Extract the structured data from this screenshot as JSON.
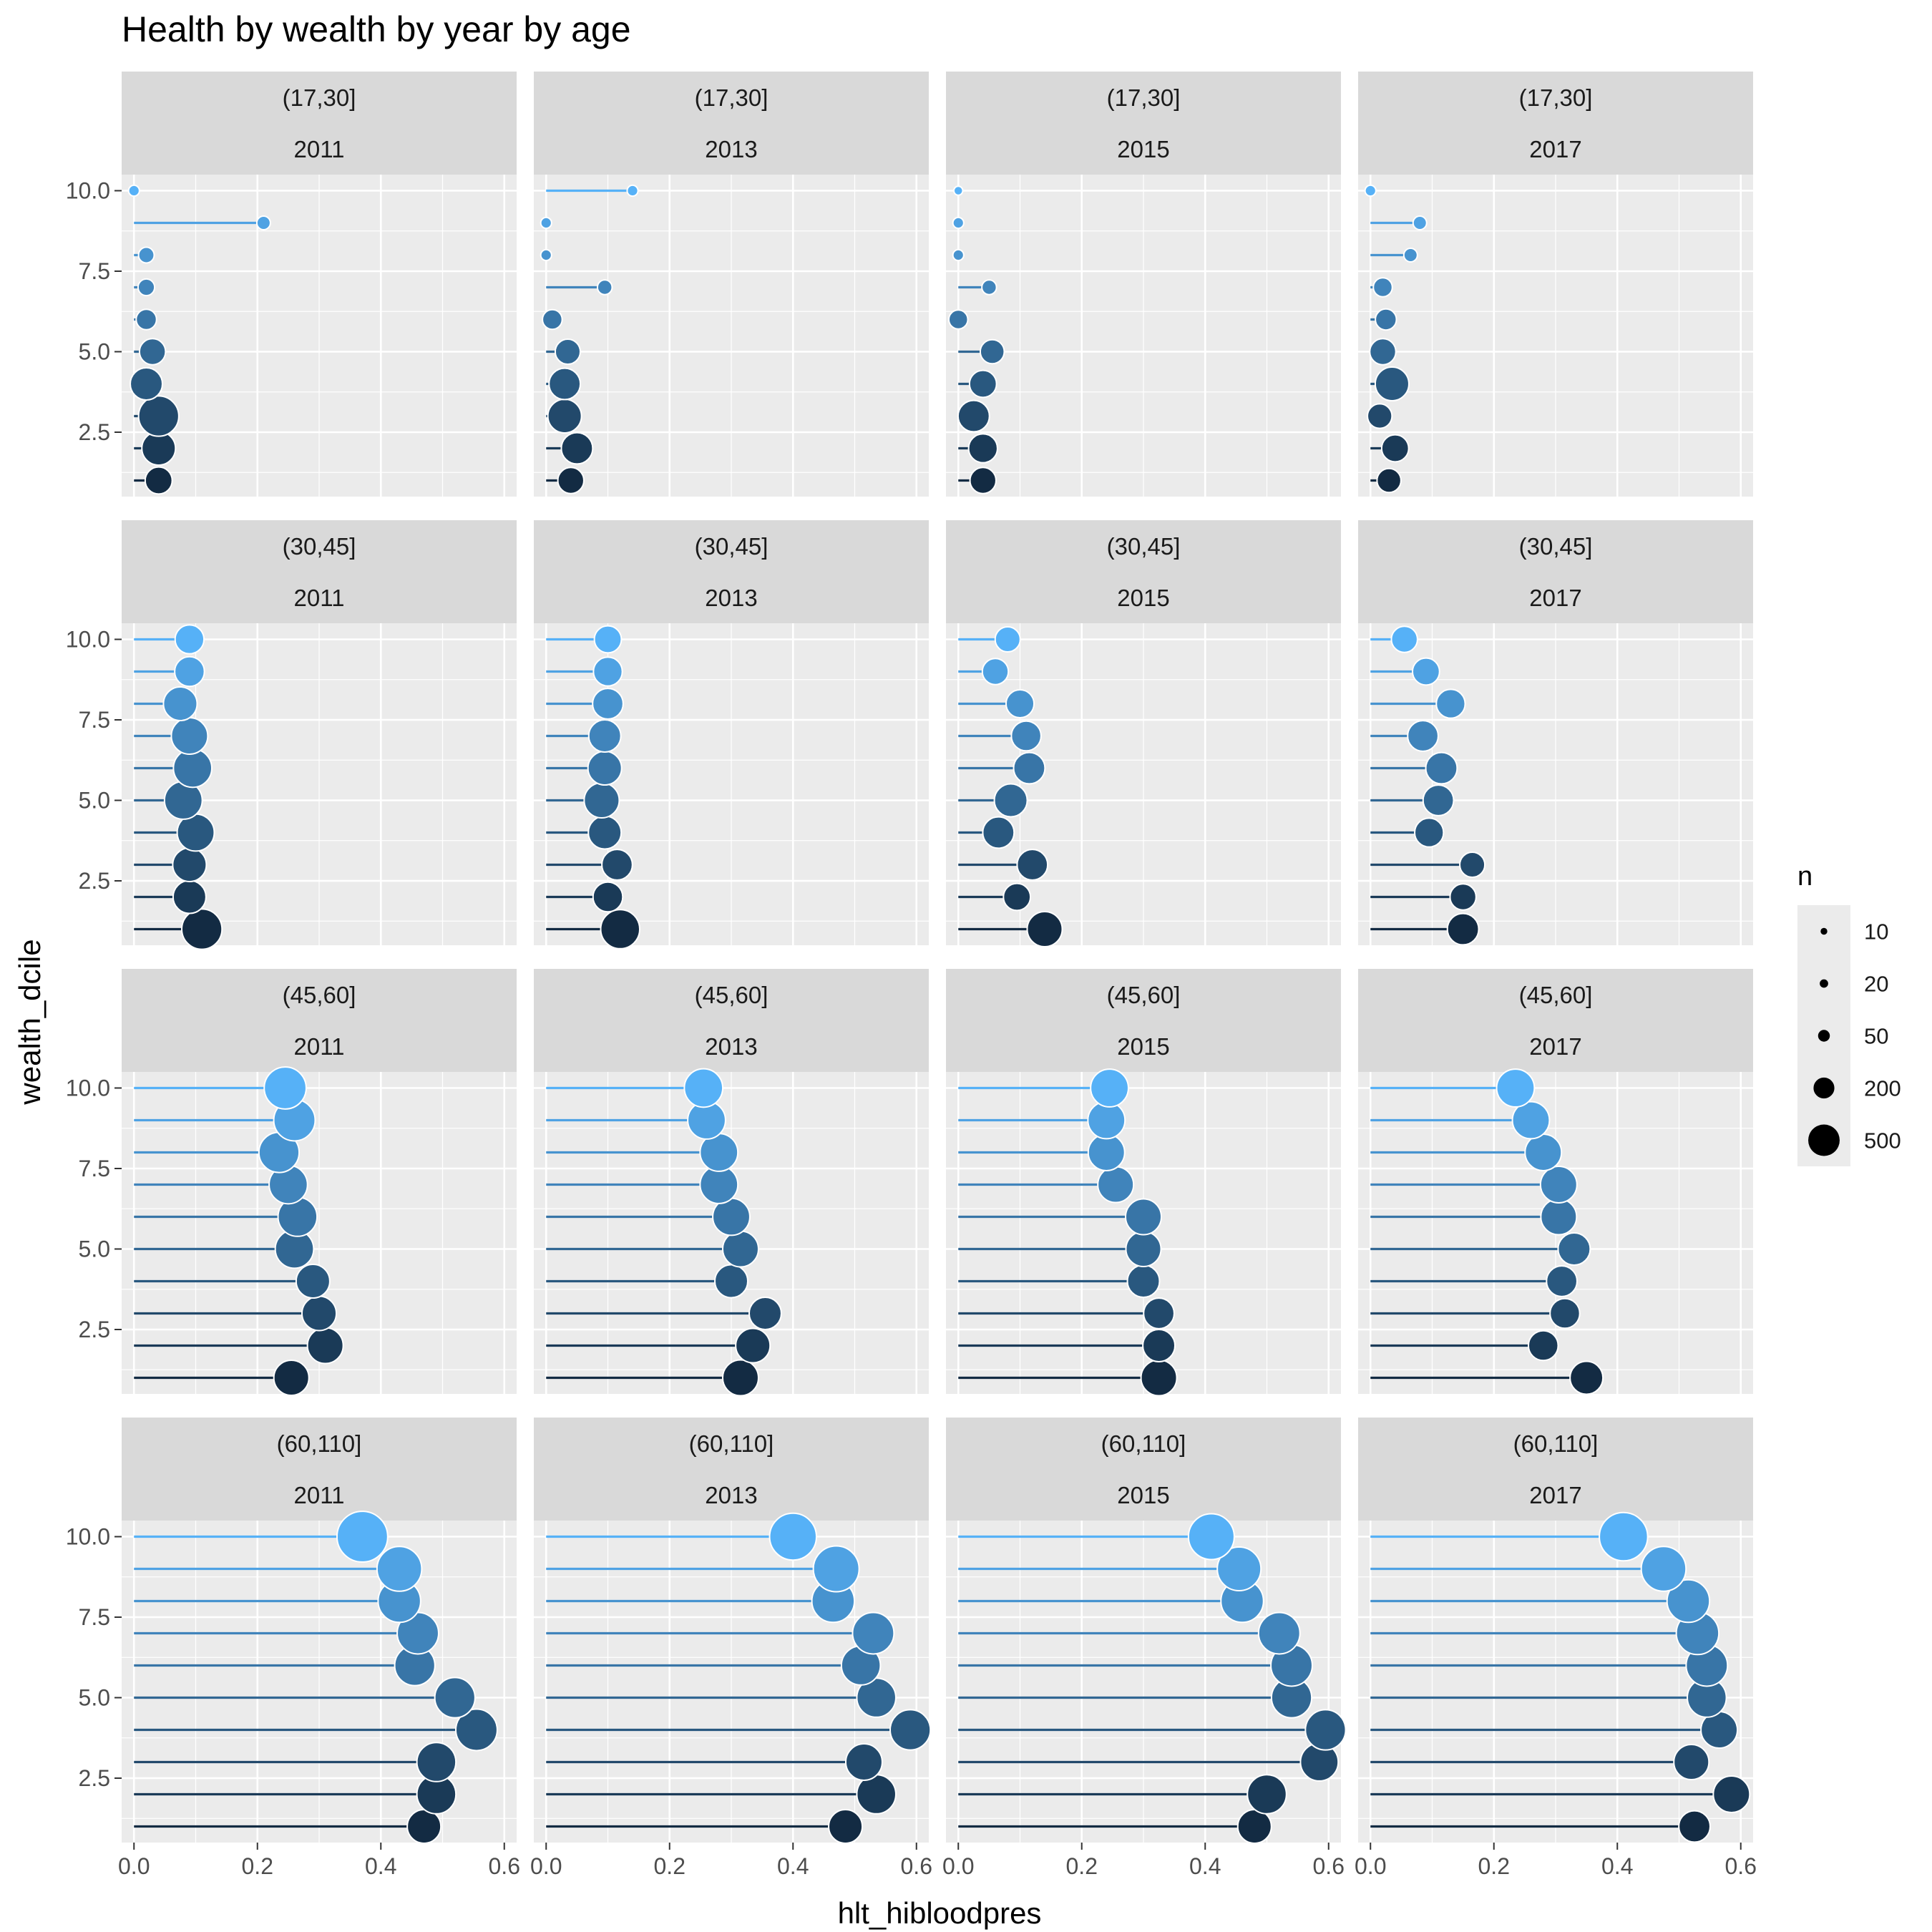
{
  "chart_data": {
    "type": "scatter",
    "subtype": "lollipop-facet-grid",
    "title": "Health by wealth by year by age",
    "xlabel": "hlt_hibloodpres",
    "ylabel": "wealth_dcile",
    "xlim": [
      -0.02,
      0.62
    ],
    "ylim": [
      0.5,
      10.5
    ],
    "x_ticks": [
      "0.0",
      "0.2",
      "0.4",
      "0.6"
    ],
    "y_ticks": [
      "2.5",
      "5.0",
      "7.5",
      "10.0"
    ],
    "grid": true,
    "legend": {
      "title": "n",
      "position": "right",
      "entries": [
        "10",
        "20",
        "50",
        "200",
        "500"
      ],
      "sizes": [
        10,
        20,
        50,
        200,
        500
      ]
    },
    "color_scale": {
      "low": "#132B43",
      "high": "#56B1F7",
      "by": "wealth_dcile"
    },
    "panels": [
      {
        "age": "(17,30]",
        "year": "2011",
        "x": [
          0.04,
          0.04,
          0.04,
          0.02,
          0.03,
          0.02,
          0.02,
          0.02,
          0.21,
          0.0
        ],
        "n": [
          120,
          200,
          300,
          180,
          110,
          60,
          35,
          30,
          20,
          10
        ]
      },
      {
        "age": "(17,30]",
        "year": "2013",
        "x": [
          0.04,
          0.05,
          0.03,
          0.03,
          0.035,
          0.01,
          0.095,
          0.0,
          0.0,
          0.14
        ],
        "n": [
          110,
          170,
          200,
          170,
          100,
          55,
          25,
          10,
          10,
          10
        ]
      },
      {
        "age": "(17,30]",
        "year": "2015",
        "x": [
          0.04,
          0.04,
          0.025,
          0.04,
          0.055,
          0.0,
          0.05,
          0.0,
          0.0,
          0.0
        ],
        "n": [
          110,
          140,
          170,
          120,
          90,
          50,
          25,
          10,
          10,
          5
        ]
      },
      {
        "age": "(17,30]",
        "year": "2017",
        "x": [
          0.03,
          0.04,
          0.015,
          0.035,
          0.02,
          0.025,
          0.02,
          0.065,
          0.08,
          0.0
        ],
        "n": [
          90,
          120,
          95,
          200,
          110,
          65,
          50,
          20,
          20,
          10
        ]
      },
      {
        "age": "(30,45]",
        "year": "2011",
        "x": [
          0.11,
          0.09,
          0.09,
          0.1,
          0.08,
          0.095,
          0.09,
          0.075,
          0.09,
          0.09
        ],
        "n": [
          300,
          190,
          200,
          250,
          260,
          270,
          240,
          200,
          150,
          140
        ]
      },
      {
        "age": "(30,45]",
        "year": "2013",
        "x": [
          0.12,
          0.1,
          0.115,
          0.095,
          0.09,
          0.095,
          0.095,
          0.1,
          0.1,
          0.1
        ],
        "n": [
          280,
          150,
          160,
          190,
          220,
          200,
          180,
          160,
          140,
          120
        ]
      },
      {
        "age": "(30,45]",
        "year": "2015",
        "x": [
          0.14,
          0.095,
          0.12,
          0.065,
          0.085,
          0.115,
          0.11,
          0.1,
          0.06,
          0.08
        ],
        "n": [
          220,
          120,
          160,
          170,
          190,
          170,
          150,
          130,
          110,
          100
        ]
      },
      {
        "age": "(30,45]",
        "year": "2017",
        "x": [
          0.15,
          0.15,
          0.165,
          0.095,
          0.11,
          0.115,
          0.085,
          0.13,
          0.09,
          0.055
        ],
        "n": [
          170,
          110,
          100,
          140,
          160,
          170,
          160,
          140,
          120,
          110
        ]
      },
      {
        "age": "(45,60]",
        "year": "2011",
        "x": [
          0.255,
          0.31,
          0.3,
          0.29,
          0.26,
          0.265,
          0.25,
          0.235,
          0.26,
          0.245
        ],
        "n": [
          220,
          230,
          210,
          200,
          270,
          280,
          270,
          300,
          320,
          330
        ]
      },
      {
        "age": "(45,60]",
        "year": "2013",
        "x": [
          0.315,
          0.335,
          0.355,
          0.3,
          0.315,
          0.3,
          0.28,
          0.28,
          0.26,
          0.255
        ],
        "n": [
          230,
          210,
          180,
          190,
          230,
          250,
          260,
          260,
          260,
          270
        ]
      },
      {
        "age": "(45,60]",
        "year": "2015",
        "x": [
          0.325,
          0.325,
          0.325,
          0.3,
          0.3,
          0.3,
          0.255,
          0.24,
          0.24,
          0.245
        ],
        "n": [
          230,
          180,
          160,
          180,
          220,
          230,
          230,
          240,
          250,
          260
        ]
      },
      {
        "age": "(45,60]",
        "year": "2017",
        "x": [
          0.35,
          0.28,
          0.315,
          0.31,
          0.33,
          0.305,
          0.305,
          0.28,
          0.26,
          0.235
        ],
        "n": [
          190,
          150,
          150,
          160,
          180,
          230,
          240,
          240,
          250,
          260
        ]
      },
      {
        "age": "(60,110]",
        "year": "2011",
        "x": [
          0.47,
          0.49,
          0.49,
          0.555,
          0.52,
          0.455,
          0.46,
          0.43,
          0.43,
          0.37
        ],
        "n": [
          200,
          280,
          280,
          320,
          300,
          300,
          320,
          340,
          380,
          500
        ]
      },
      {
        "age": "(60,110]",
        "year": "2013",
        "x": [
          0.485,
          0.535,
          0.515,
          0.59,
          0.535,
          0.51,
          0.53,
          0.465,
          0.47,
          0.4
        ],
        "n": [
          200,
          280,
          240,
          300,
          280,
          280,
          320,
          340,
          400,
          420
        ]
      },
      {
        "age": "(60,110]",
        "year": "2015",
        "x": [
          0.48,
          0.5,
          0.585,
          0.595,
          0.54,
          0.54,
          0.52,
          0.46,
          0.455,
          0.41
        ],
        "n": [
          200,
          280,
          260,
          300,
          300,
          320,
          320,
          340,
          360,
          400
        ]
      },
      {
        "age": "(60,110]",
        "year": "2017",
        "x": [
          0.525,
          0.585,
          0.52,
          0.565,
          0.545,
          0.545,
          0.53,
          0.515,
          0.475,
          0.41
        ],
        "n": [
          170,
          240,
          220,
          240,
          280,
          320,
          340,
          340,
          380,
          450
        ]
      }
    ]
  }
}
